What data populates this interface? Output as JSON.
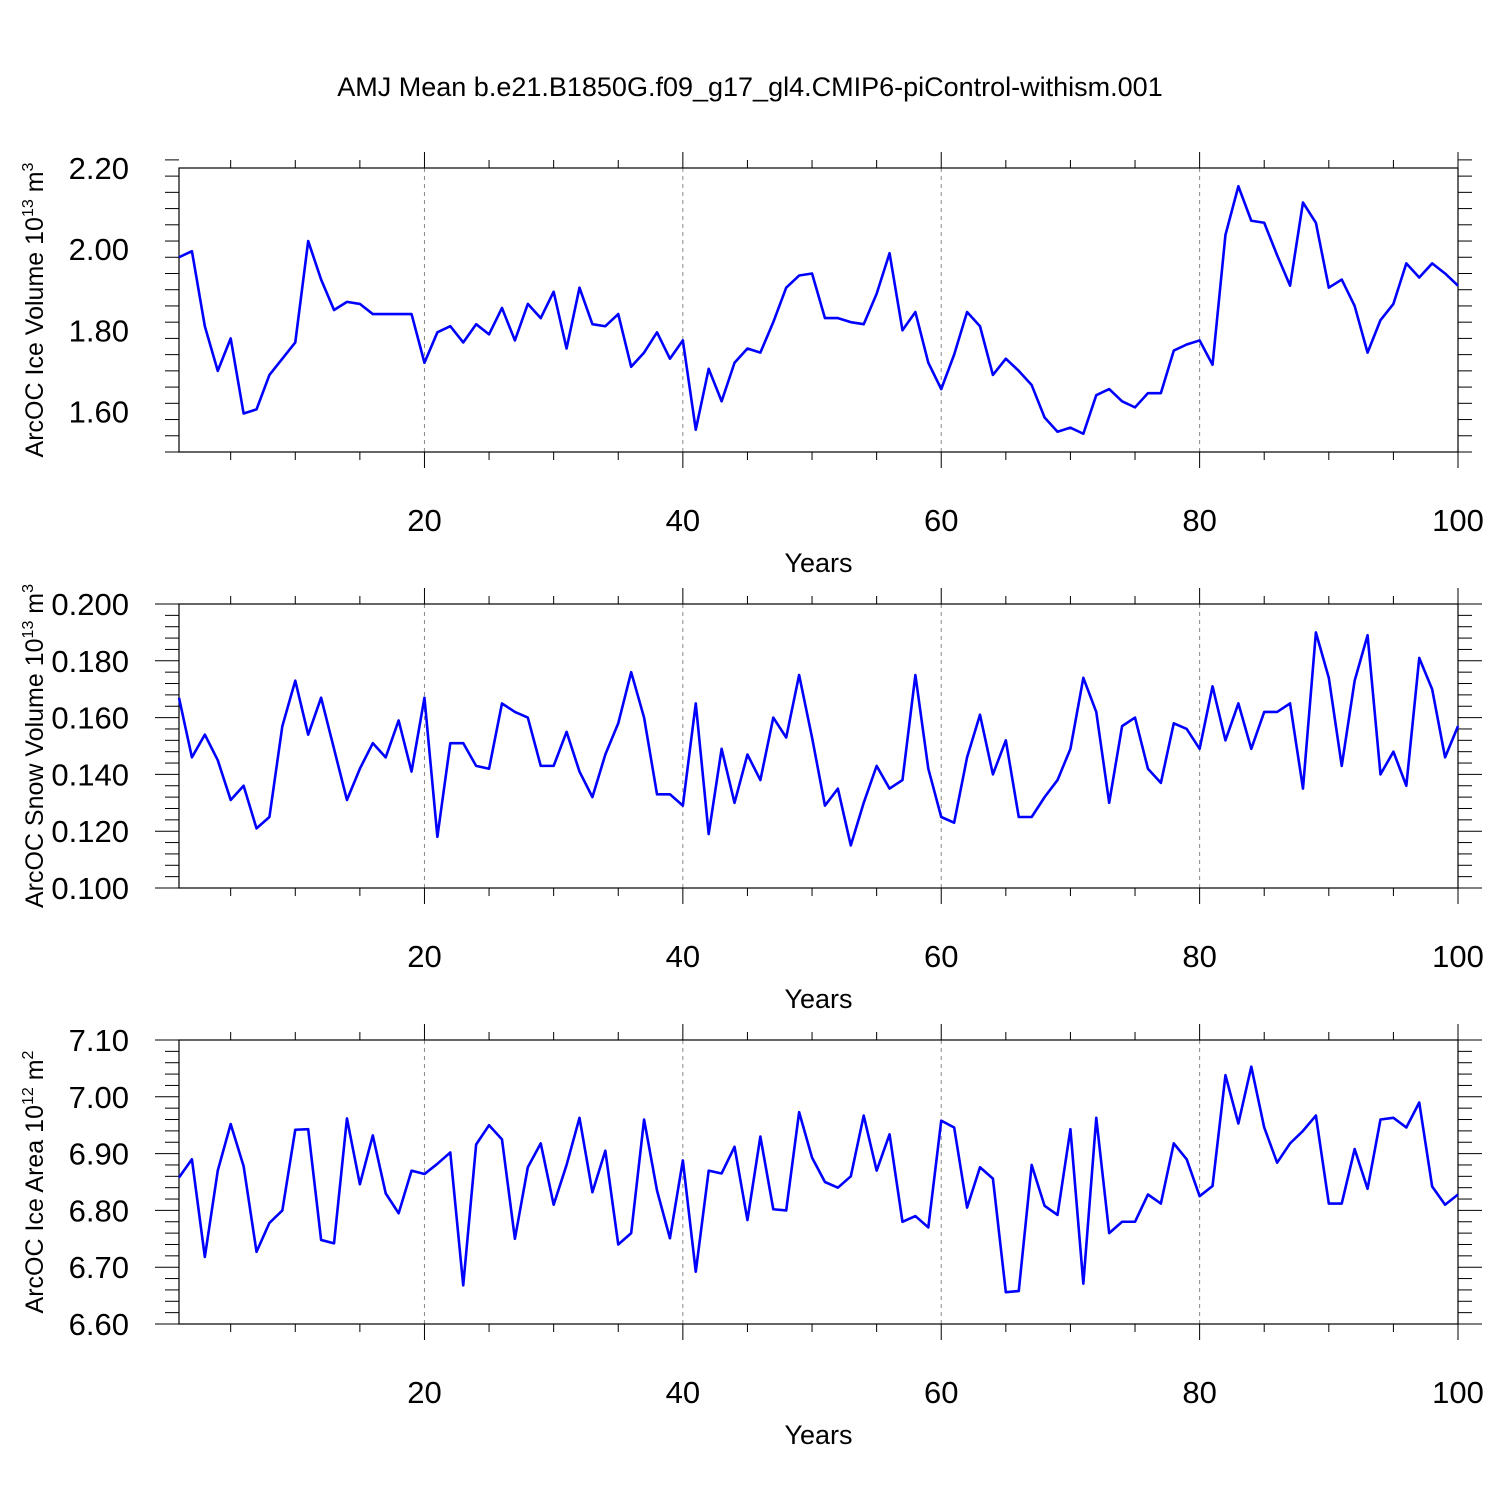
{
  "figure": {
    "title": "AMJ Mean b.e21.B1850G.f09_g17_gl4.CMIP6-piControl-withism.001"
  },
  "chart_data": [
    {
      "type": "line",
      "title": "",
      "xlabel": "Years",
      "ylabel_main": "ArcOC Ice Volume 10",
      "ylabel_sup": "13",
      "ylabel_unit": "m",
      "ylabel_unit_sup": "3",
      "xlim": [
        1,
        100
      ],
      "ylim": [
        1.5,
        2.2
      ],
      "xticks": [
        20,
        40,
        60,
        80,
        100
      ],
      "xtick_labels": [
        "20",
        "40",
        "60",
        "80",
        "100"
      ],
      "yticks": [
        1.6,
        1.8,
        2.0,
        2.2
      ],
      "ytick_labels": [
        "1.60",
        "1.80",
        "2.00",
        "2.20"
      ],
      "grid": "vertical dashed at major x ticks",
      "line_color": "#0000ff",
      "series": [
        {
          "values": [
            1.98,
            1.995,
            1.81,
            1.7,
            1.78,
            1.595,
            1.605,
            1.69,
            1.73,
            1.77,
            2.02,
            1.925,
            1.85,
            1.87,
            1.865,
            1.84,
            1.84,
            1.84,
            1.84,
            1.72,
            1.795,
            1.81,
            1.77,
            1.815,
            1.79,
            1.855,
            1.775,
            1.865,
            1.83,
            1.895,
            1.755,
            1.905,
            1.815,
            1.81,
            1.84,
            1.71,
            1.745,
            1.795,
            1.73,
            1.775,
            1.555,
            1.705,
            1.625,
            1.72,
            1.755,
            1.745,
            1.82,
            1.905,
            1.935,
            1.94,
            1.83,
            1.83,
            1.82,
            1.815,
            1.89,
            1.99,
            1.8,
            1.845,
            1.72,
            1.655,
            1.74,
            1.845,
            1.81,
            1.69,
            1.73,
            1.7,
            1.665,
            1.585,
            1.55,
            1.56,
            1.545,
            1.64,
            1.655,
            1.625,
            1.61,
            1.645,
            1.645,
            1.75,
            1.765,
            1.775,
            1.715,
            2.035,
            2.155,
            2.07,
            2.065,
            1.985,
            1.91,
            2.115,
            2.065,
            1.905,
            1.925,
            1.86,
            1.745,
            1.825,
            1.865,
            1.965,
            1.93,
            1.965,
            1.94,
            1.91
          ]
        }
      ]
    },
    {
      "type": "line",
      "title": "",
      "xlabel": "Years",
      "ylabel_main": "ArcOC Snow Volume 10",
      "ylabel_sup": "13",
      "ylabel_unit": "m",
      "ylabel_unit_sup": "3",
      "xlim": [
        1,
        100
      ],
      "ylim": [
        0.1,
        0.2
      ],
      "xticks": [
        20,
        40,
        60,
        80,
        100
      ],
      "xtick_labels": [
        "20",
        "40",
        "60",
        "80",
        "100"
      ],
      "yticks": [
        0.1,
        0.12,
        0.14,
        0.16,
        0.18,
        0.2
      ],
      "ytick_labels": [
        "0.100",
        "0.120",
        "0.140",
        "0.160",
        "0.180",
        "0.200"
      ],
      "grid": "vertical dashed at major x ticks",
      "line_color": "#0000ff",
      "series": [
        {
          "values": [
            0.167,
            0.146,
            0.154,
            0.145,
            0.131,
            0.136,
            0.121,
            0.125,
            0.157,
            0.173,
            0.154,
            0.167,
            0.149,
            0.131,
            0.142,
            0.151,
            0.146,
            0.159,
            0.141,
            0.167,
            0.118,
            0.151,
            0.151,
            0.143,
            0.142,
            0.165,
            0.162,
            0.16,
            0.143,
            0.143,
            0.155,
            0.141,
            0.132,
            0.147,
            0.158,
            0.176,
            0.16,
            0.133,
            0.133,
            0.129,
            0.165,
            0.119,
            0.149,
            0.13,
            0.147,
            0.138,
            0.16,
            0.153,
            0.175,
            0.153,
            0.129,
            0.135,
            0.115,
            0.13,
            0.143,
            0.135,
            0.138,
            0.175,
            0.142,
            0.125,
            0.123,
            0.146,
            0.161,
            0.14,
            0.152,
            0.125,
            0.125,
            0.132,
            0.138,
            0.149,
            0.174,
            0.162,
            0.13,
            0.157,
            0.16,
            0.142,
            0.137,
            0.158,
            0.156,
            0.149,
            0.171,
            0.152,
            0.165,
            0.149,
            0.162,
            0.162,
            0.165,
            0.135,
            0.19,
            0.174,
            0.143,
            0.173,
            0.189,
            0.14,
            0.148,
            0.136,
            0.181,
            0.17,
            0.146,
            0.157
          ]
        }
      ]
    },
    {
      "type": "line",
      "title": "",
      "xlabel": "Years",
      "ylabel_main": "ArcOC Ice Area 10",
      "ylabel_sup": "12",
      "ylabel_unit": "m",
      "ylabel_unit_sup": "2",
      "xlim": [
        1,
        100
      ],
      "ylim": [
        6.6,
        7.1
      ],
      "xticks": [
        20,
        40,
        60,
        80,
        100
      ],
      "xtick_labels": [
        "20",
        "40",
        "60",
        "80",
        "100"
      ],
      "yticks": [
        6.6,
        6.7,
        6.8,
        6.9,
        7.0,
        7.1
      ],
      "ytick_labels": [
        "6.60",
        "6.70",
        "6.80",
        "6.90",
        "7.00",
        "7.10"
      ],
      "grid": "vertical dashed at major x ticks",
      "line_color": "#0000ff",
      "series": [
        {
          "values": [
            6.858,
            6.89,
            6.718,
            6.87,
            6.952,
            6.878,
            6.727,
            6.778,
            6.8,
            6.942,
            6.943,
            6.748,
            6.742,
            6.962,
            6.846,
            6.932,
            6.83,
            6.795,
            6.87,
            6.864,
            6.882,
            6.902,
            6.668,
            6.916,
            6.95,
            6.925,
            6.75,
            6.876,
            6.918,
            6.81,
            6.88,
            6.963,
            6.832,
            6.905,
            6.74,
            6.76,
            6.96,
            6.835,
            6.751,
            6.888,
            6.692,
            6.87,
            6.865,
            6.912,
            6.783,
            6.93,
            6.802,
            6.8,
            6.973,
            6.893,
            6.85,
            6.84,
            6.86,
            6.967,
            6.87,
            6.934,
            6.78,
            6.79,
            6.77,
            6.958,
            6.946,
            6.805,
            6.876,
            6.856,
            6.656,
            6.658,
            6.88,
            6.808,
            6.792,
            6.943,
            6.671,
            6.963,
            6.76,
            6.78,
            6.78,
            6.828,
            6.812,
            6.918,
            6.89,
            6.825,
            6.843,
            7.038,
            6.953,
            7.053,
            6.946,
            6.884,
            6.918,
            6.94,
            6.967,
            6.812,
            6.812,
            6.908,
            6.838,
            6.96,
            6.963,
            6.946,
            6.99,
            6.842,
            6.81,
            6.828
          ]
        }
      ]
    }
  ]
}
